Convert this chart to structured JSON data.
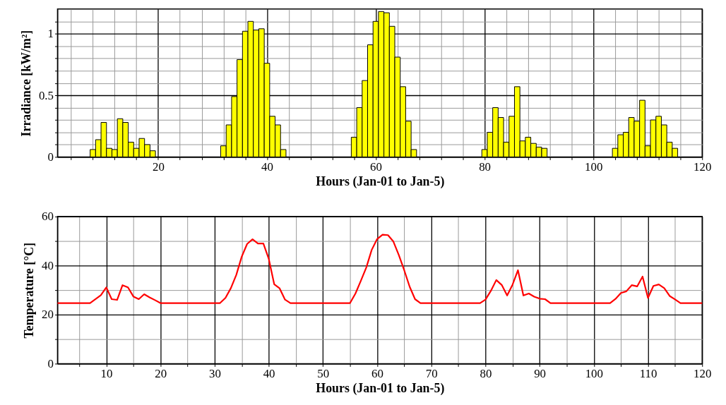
{
  "chart_data": [
    {
      "type": "bar",
      "xlabel": "Hours (Jan-01 to Jan-5)",
      "ylabel": "Irradiance [kW/m²]",
      "grid": true,
      "xlim": [
        1.5,
        120
      ],
      "ylim": [
        0,
        1.2
      ],
      "xticks": [
        {
          "value": 4,
          "label": null
        },
        {
          "value": 8,
          "label": null
        },
        {
          "value": 12,
          "label": null
        },
        {
          "value": 16,
          "label": null
        },
        20,
        {
          "value": 24,
          "label": null
        },
        {
          "value": 28,
          "label": null
        },
        {
          "value": 32,
          "label": null
        },
        {
          "value": 36,
          "label": null
        },
        40,
        {
          "value": 44,
          "label": null
        },
        {
          "value": 48,
          "label": null
        },
        {
          "value": 52,
          "label": null
        },
        {
          "value": 56,
          "label": null
        },
        60,
        {
          "value": 64,
          "label": null
        },
        {
          "value": 68,
          "label": null
        },
        {
          "value": 72,
          "label": null
        },
        {
          "value": 76,
          "label": null
        },
        80,
        {
          "value": 84,
          "label": null
        },
        {
          "value": 88,
          "label": null
        },
        {
          "value": 92,
          "label": null
        },
        {
          "value": 96,
          "label": null
        },
        100,
        {
          "value": 104,
          "label": null
        },
        {
          "value": 108,
          "label": null
        },
        {
          "value": 112,
          "label": null
        },
        {
          "value": 116,
          "label": null
        },
        120
      ],
      "yticks": [
        0,
        {
          "value": 0.1,
          "label": null
        },
        {
          "value": 0.2,
          "label": null
        },
        {
          "value": 0.3,
          "label": null
        },
        {
          "value": 0.4,
          "label": null
        },
        0.5,
        {
          "value": 0.6,
          "label": null
        },
        {
          "value": 0.7,
          "label": null
        },
        {
          "value": 0.8,
          "label": null
        },
        {
          "value": 0.9,
          "label": null
        },
        1,
        {
          "value": 1.1,
          "label": null
        }
      ],
      "series": [
        {
          "color": "#ffff00",
          "x": [
            8,
            9,
            10,
            11,
            12,
            13,
            14,
            15,
            16,
            17,
            18,
            19,
            32,
            33,
            34,
            35,
            36,
            37,
            38,
            39,
            40,
            41,
            42,
            43,
            56,
            57,
            58,
            59,
            60,
            61,
            62,
            63,
            64,
            65,
            66,
            67,
            80,
            81,
            82,
            83,
            84,
            85,
            86,
            87,
            88,
            89,
            90,
            91,
            104,
            105,
            106,
            107,
            108,
            109,
            110,
            111,
            112,
            113,
            114,
            115
          ],
          "values": [
            0.06,
            0.14,
            0.28,
            0.07,
            0.06,
            0.31,
            0.28,
            0.12,
            0.07,
            0.15,
            0.1,
            0.05,
            0.09,
            0.26,
            0.49,
            0.79,
            1.02,
            1.1,
            1.03,
            1.04,
            0.76,
            0.33,
            0.26,
            0.06,
            0.16,
            0.4,
            0.62,
            0.91,
            1.1,
            1.18,
            1.17,
            1.06,
            0.81,
            0.57,
            0.29,
            0.06,
            0.06,
            0.2,
            0.4,
            0.32,
            0.12,
            0.33,
            0.57,
            0.13,
            0.16,
            0.11,
            0.08,
            0.07,
            0.07,
            0.18,
            0.2,
            0.32,
            0.29,
            0.46,
            0.09,
            0.3,
            0.33,
            0.26,
            0.12,
            0.07
          ]
        }
      ]
    },
    {
      "type": "line",
      "xlabel": "Hours (Jan-01 to Jan-5)",
      "ylabel": "Temperature [°C]",
      "grid": true,
      "marker": "none",
      "line_style": "solid",
      "xlim": [
        1,
        120
      ],
      "ylim": [
        0,
        60
      ],
      "xticks": [
        {
          "value": 5,
          "label": null
        },
        10,
        {
          "value": 15,
          "label": null
        },
        20,
        {
          "value": 25,
          "label": null
        },
        30,
        {
          "value": 35,
          "label": null
        },
        40,
        {
          "value": 45,
          "label": null
        },
        50,
        {
          "value": 55,
          "label": null
        },
        60,
        {
          "value": 65,
          "label": null
        },
        70,
        {
          "value": 75,
          "label": null
        },
        80,
        {
          "value": 85,
          "label": null
        },
        90,
        {
          "value": 95,
          "label": null
        },
        100,
        {
          "value": 105,
          "label": null
        },
        110,
        {
          "value": 115,
          "label": null
        },
        120
      ],
      "yticks": [
        0,
        {
          "value": 10,
          "label": null
        },
        20,
        {
          "value": 30,
          "label": null
        },
        40,
        {
          "value": 50,
          "label": null
        },
        60
      ],
      "series": [
        {
          "color": "#ff0000",
          "x": [
            1,
            7,
            9,
            10,
            11,
            12,
            13,
            14,
            15,
            16,
            17,
            18,
            19,
            20,
            31,
            32,
            33,
            34,
            35,
            36,
            37,
            38,
            39,
            40,
            41,
            42,
            43,
            44,
            55,
            56,
            57,
            58,
            59,
            60,
            61,
            62,
            63,
            64,
            65,
            66,
            67,
            68,
            79,
            80,
            81,
            82,
            83,
            84,
            85,
            86,
            87,
            88,
            89,
            90,
            91,
            92,
            103,
            104,
            105,
            106,
            107,
            108,
            109,
            110,
            111,
            112,
            113,
            114,
            115,
            116,
            120
          ],
          "values": [
            24.7,
            24.7,
            27.9,
            31.1,
            26.3,
            26.0,
            32.0,
            31.1,
            27.4,
            26.3,
            28.3,
            27.0,
            25.9,
            24.7,
            24.7,
            26.8,
            30.8,
            36.2,
            43.6,
            48.8,
            50.7,
            49.0,
            49.0,
            42.7,
            32.4,
            30.7,
            26.1,
            24.7,
            24.7,
            28.6,
            33.8,
            39.2,
            46.4,
            50.8,
            52.6,
            52.4,
            49.8,
            44.3,
            38.1,
            31.4,
            26.3,
            24.7,
            24.7,
            26.1,
            29.7,
            34.1,
            32.1,
            27.8,
            32.2,
            38.1,
            27.8,
            28.6,
            27.3,
            26.5,
            26.3,
            24.7,
            24.7,
            26.4,
            28.8,
            29.5,
            32.0,
            31.5,
            35.5,
            26.8,
            31.7,
            32.3,
            30.8,
            27.6,
            26.2,
            24.7,
            24.7
          ]
        }
      ]
    }
  ]
}
